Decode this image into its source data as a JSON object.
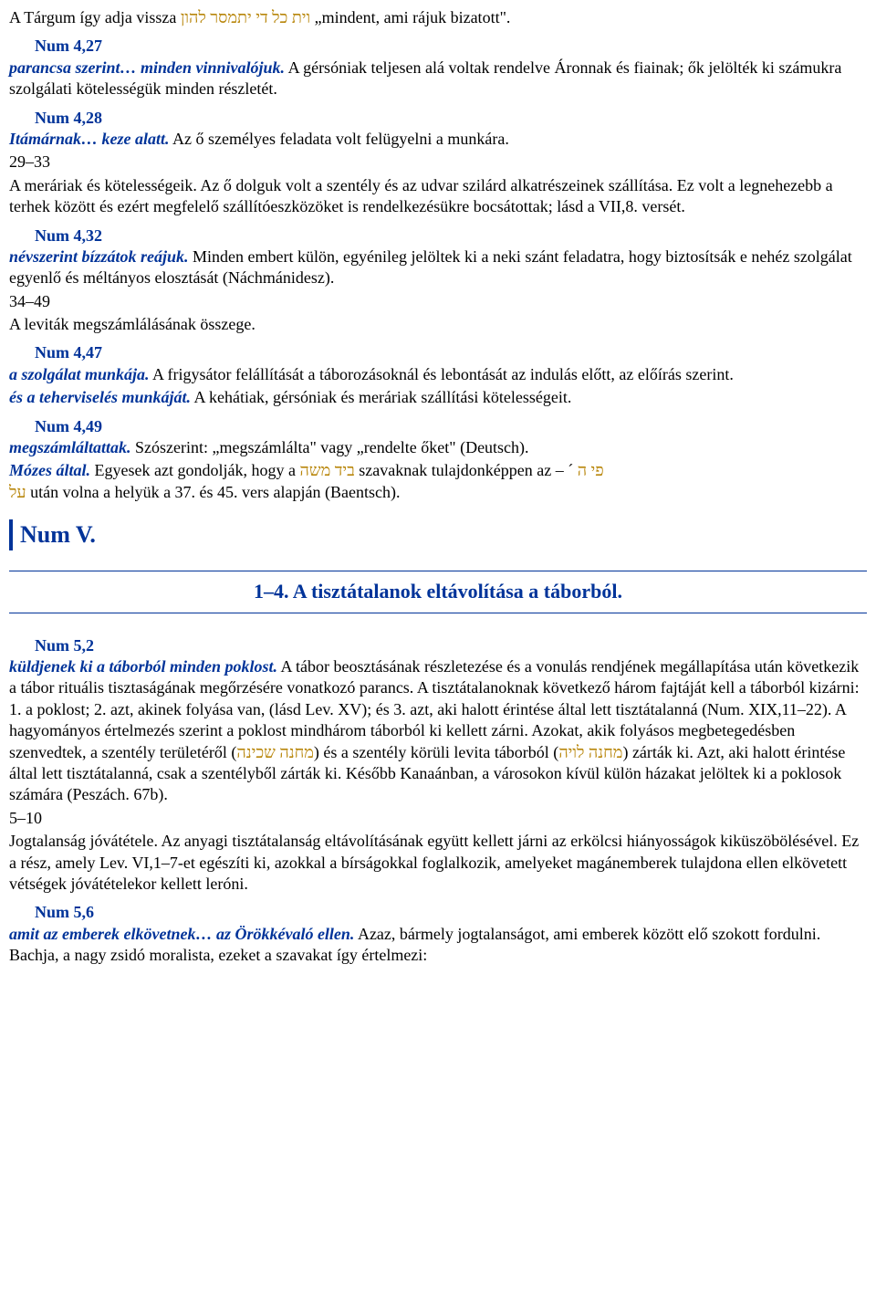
{
  "p1_pre": "A Tárgum így adja vissza ",
  "p1_heb": "וית כל די יתמסר להון",
  "p1_post": " „mindent, ami rájuk bizatott\".",
  "v427": "Num 4,27",
  "v427_lead": "parancsa szerint… minden vinnivalójuk.",
  "v427_body": " A gérsóniak teljesen alá voltak rendelve Áronnak és fiainak; ők jelölték ki számukra szolgálati kötelességük minden részletét.",
  "v428": "Num 4,28",
  "v428_lead": "Itámárnak… keze alatt.",
  "v428_body": " Az ő személyes feladata volt felügyelni a munkára.",
  "v428_range": "29–33",
  "v428_body2": "A meráriak és kötelességeik. Az ő dolguk volt a szentély és az udvar szilárd alkatrészeinek szállítása. Ez volt a legnehezebb a terhek között és ezért megfelelő szállítóeszközöket is rendelkezésükre bocsátottak; lásd a VII,8. versét.",
  "v432": "Num 4,32",
  "v432_lead": "névszerint bízzátok reájuk.",
  "v432_body": " Minden embert külön, egyénileg jelöltek ki a neki szánt feladatra, hogy biztosítsák e nehéz szolgálat egyenlő és méltányos elosztását (Náchmánidesz).",
  "v432_range": "34–49",
  "v432_body2": "A leviták megszámlálásának összege.",
  "v447": "Num 4,47",
  "v447_lead1": "a szolgálat munkája.",
  "v447_body1": " A frigysátor felállítását a táborozásoknál és lebontását az indulás előtt, az előírás szerint.",
  "v447_lead2": "és a teherviselés munkáját.",
  "v447_body2": " A kehátiak, gérsóniak és meráriak szállítási kötelességeit.",
  "v449": "Num 4,49",
  "v449_lead1": "megszámláltattak.",
  "v449_body1": " Szószerint: „megszámlálta\" vagy „rendelte őket\" (Deutsch).",
  "v449_lead2": "Mózes által.",
  "v449_body2a": " Egyesek azt gondolják, hogy a ",
  "v449_heb1": "ביד משה",
  "v449_body2b": " szavaknak tulajdonképpen az  –  ´  ",
  "v449_heb2": "פי ה",
  "v449_heb3": "על",
  "v449_body2c": " után volna a helyük a 37. és 45. vers alapján (Baentsch).",
  "chapter": "Num V.",
  "section": "1–4. A tisztátalanok eltávolítása a táborból.",
  "v52": "Num 5,2",
  "v52_lead": "küldjenek ki a táborból minden poklost.",
  "v52_b1": " A tábor beosztásának részletezése és a vonulás rendjének megállapítása után következik a tábor rituális tisztaságának megőrzésére vonatkozó parancs. A tisztátalanoknak következő három fajtáját kell a táborból kizárni: 1. a poklost; 2. azt, akinek folyása van, (lásd Lev. XV); és 3. azt, aki halott érintése által lett tisztátalanná (Num. XIX,11–22). A hagyományos értelmezés szerint a poklost mindhárom táborból ki kellett zárni. Azokat, akik folyásos megbetegedésben szenvedtek, a szentély területéről (",
  "v52_heb1": "מחנה שכינה",
  "v52_b2": ") és a szentély körüli levita táborból (",
  "v52_heb2": "מחנה לויה",
  "v52_b3": ") zárták ki. Azt, aki halott érintése által lett tisztátalanná, csak a szentélyből zárták ki. Később Kanaánban, a városokon kívül külön házakat jelöltek ki a poklosok számára (Peszách. 67b).",
  "v52_range": "5–10",
  "v52_body2": "Jogtalanság jóvátétele. Az anyagi tisztátalanság eltávolításának együtt kellett járni az erkölcsi hiányosságok kiküszöbölésével. Ez a rész, amely Lev. VI,1–7-et egészíti ki, azokkal a bírságokkal foglalkozik, amelyeket magánemberek tulajdona ellen elkövetett vétségek jóvátételekor kellett leróni.",
  "v56": "Num 5,6",
  "v56_lead": "amit az emberek elkövetnek… az Örökkévaló ellen.",
  "v56_body": " Azaz, bármely jogtalanságot, ami emberek között elő szokott fordulni. Bachja, a nagy zsidó moralista, ezeket a szavakat így értelmezi:"
}
